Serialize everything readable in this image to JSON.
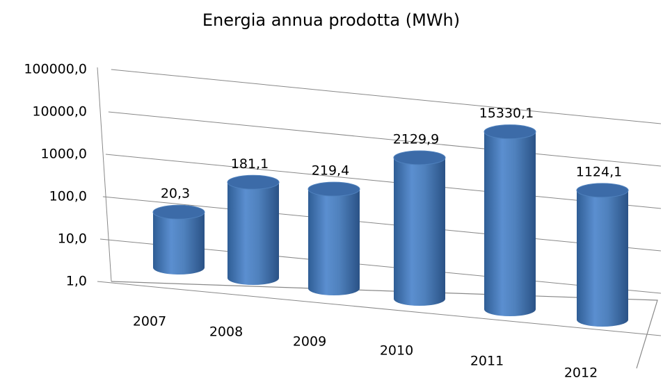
{
  "chart_data": {
    "type": "bar",
    "title": "Energia annua prodotta (MWh)",
    "categories": [
      "2007",
      "2008",
      "2009",
      "2010",
      "2011",
      "2012"
    ],
    "values": [
      20.3,
      181.1,
      219.4,
      2129.9,
      15330.1,
      1124.1
    ],
    "value_labels": [
      "20,3",
      "181,1",
      "219,4",
      "2129,9",
      "15330,1",
      "1124,1"
    ],
    "color": "#4f81bd",
    "log_scale": true,
    "ylim": [
      1,
      100000
    ],
    "yticks": [
      {
        "value": 1,
        "label": "1,0"
      },
      {
        "value": 10,
        "label": "10,0"
      },
      {
        "value": 100,
        "label": "100,0"
      },
      {
        "value": 1000,
        "label": "1000,0"
      },
      {
        "value": 10000,
        "label": "10000,0"
      },
      {
        "value": 100000,
        "label": "100000,0"
      }
    ],
    "grid": true
  }
}
